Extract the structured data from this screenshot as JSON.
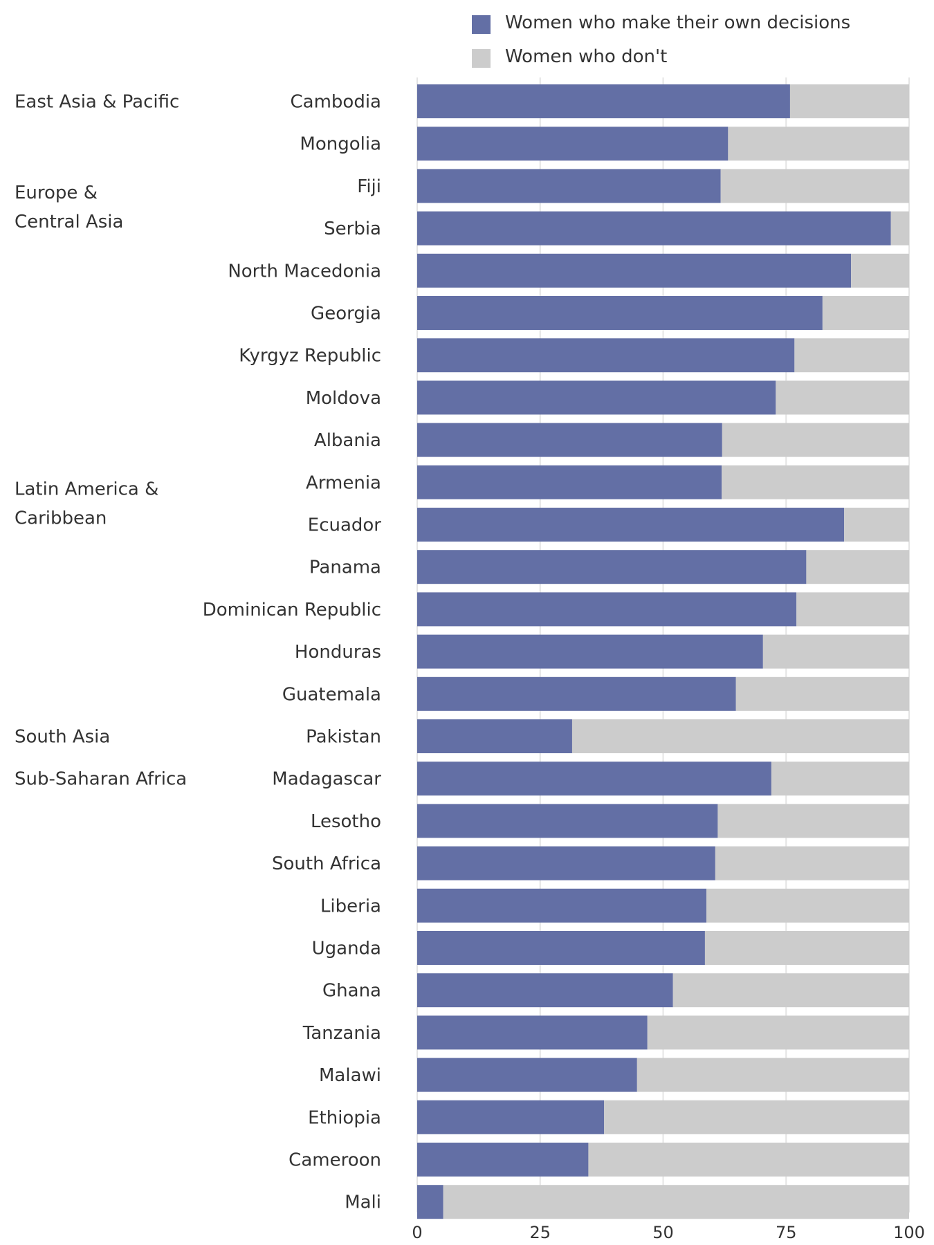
{
  "chart_data": {
    "type": "bar",
    "orientation": "horizontal",
    "stacked": true,
    "legend": {
      "placement": "top-right",
      "entries": [
        {
          "name": "Women who make their own decisions",
          "color": "#636fa5"
        },
        {
          "name": "Women who don't",
          "color": "#cccccc"
        }
      ]
    },
    "xlim": [
      0,
      100
    ],
    "x_ticks": [
      "0",
      "25",
      "50",
      "75",
      "100"
    ],
    "grid": true,
    "groups": [
      {
        "label": "East Asia & Pacific",
        "start": 0
      },
      {
        "label": "Europe & Central Asia",
        "start": 3
      },
      {
        "label": "Latin America & Caribbean",
        "start": 10
      },
      {
        "label": "South Asia",
        "start": 15
      },
      {
        "label": "Sub-Saharan Africa",
        "start": 16
      }
    ],
    "categories": [
      "Cambodia",
      "Mongolia",
      "Fiji",
      "Serbia",
      "North Macedonia",
      "Georgia",
      "Kyrgyz Republic",
      "Moldova",
      "Albania",
      "Armenia",
      "Ecuador",
      "Panama",
      "Dominican Republic",
      "Honduras",
      "Guatemala",
      "Pakistan",
      "Madagascar",
      "Lesotho",
      "South Africa",
      "Liberia",
      "Uganda",
      "Ghana",
      "Tanzania",
      "Malawi",
      "Ethiopia",
      "Cameroon",
      "Mali"
    ],
    "series": [
      {
        "name": "Women who make their own decisions",
        "color": "#636fa5",
        "values": [
          75.8,
          63.2,
          61.7,
          96.3,
          88.2,
          82.4,
          76.7,
          72.9,
          62.0,
          61.9,
          86.8,
          79.1,
          77.1,
          70.3,
          64.8,
          31.5,
          72.0,
          61.1,
          60.6,
          58.8,
          58.5,
          52.0,
          46.8,
          44.7,
          38.0,
          34.8,
          5.3
        ]
      },
      {
        "name": "Women who don't",
        "color": "#cccccc",
        "values": [
          24.2,
          36.8,
          38.3,
          3.7,
          11.8,
          17.6,
          23.3,
          27.1,
          38.0,
          38.1,
          13.2,
          20.9,
          22.9,
          29.7,
          35.2,
          68.5,
          28.0,
          38.9,
          39.4,
          41.2,
          41.5,
          48.0,
          53.2,
          55.3,
          62.0,
          65.2,
          94.7
        ]
      }
    ]
  }
}
